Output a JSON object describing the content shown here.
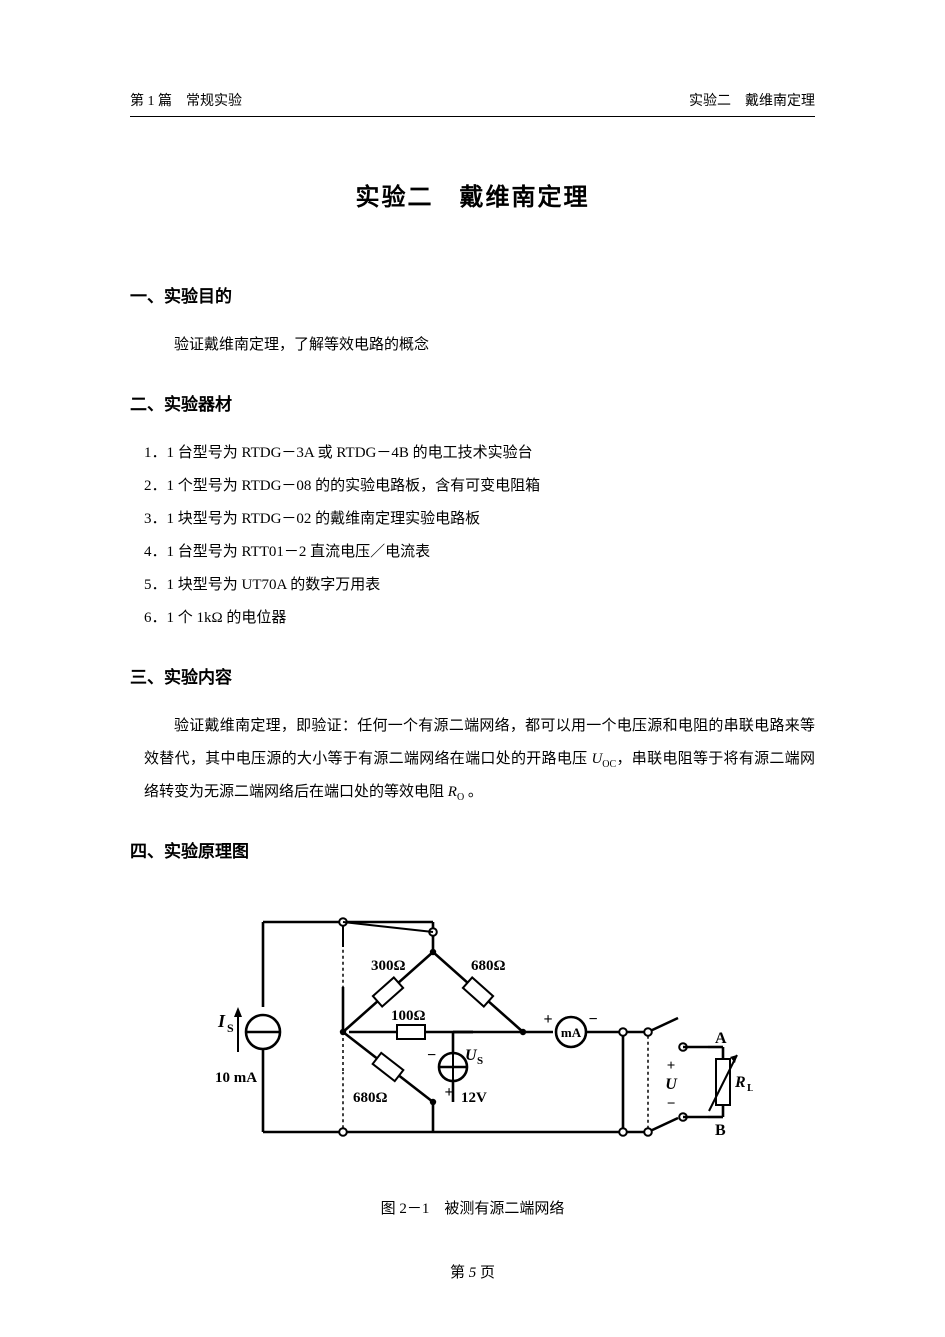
{
  "header": {
    "left": "第 1 篇　常规实验",
    "right": "实验二　戴维南定理"
  },
  "title": "实验二　戴维南定理",
  "sections": {
    "s1": {
      "heading": "一、实验目的",
      "text": "验证戴维南定理，了解等效电路的概念"
    },
    "s2": {
      "heading": "二、实验器材",
      "items": {
        "i1": "1．1 台型号为 RTDG－3A 或 RTDG－4B  的电工技术实验台",
        "i2": "2．1 个型号为 RTDG－08 的的实验电路板，含有可变电阻箱",
        "i3": "3．1 块型号为 RTDG－02 的戴维南定理实验电路板",
        "i4": "4．1 台型号为 RTT01－2  直流电压／电流表",
        "i5": "5．1 块型号为 UT70A  的数字万用表",
        "i6": "6．1 个 1kΩ 的电位器"
      }
    },
    "s3": {
      "heading": "三、实验内容",
      "para_pre": "验证戴维南定理，即验证：任何一个有源二端网络，都可以用一个电压源和电阻的串联电路来等效替代，其中电压源的大小等于有源二端网络在端口处的开路电压 ",
      "uoc_i": "U",
      "uoc_sub": "OC",
      "para_mid": "，串联电阻等于将有源二端网络转变为无源二端网络后在端口处的等效电阻 ",
      "ro_i": "R",
      "ro_sub": "O",
      "para_post": " 。"
    },
    "s4": {
      "heading": "四、实验原理图",
      "caption": "图 2－1　被测有源二端网络"
    }
  },
  "circuit": {
    "labels": {
      "Is_i": "I",
      "Is_sub": "S",
      "src_val": "10 mA",
      "r300": "300Ω",
      "r680a": "680Ω",
      "r100": "100Ω",
      "r680b": "680Ω",
      "Us_i": "U",
      "Us_sub": "S",
      "Us_val": "12V",
      "mA": "mA",
      "plus": "+",
      "minus": "−",
      "A": "A",
      "B": "B",
      "U_i": "U",
      "RL_i": "R",
      "RL_sub": "L"
    },
    "style": {
      "stroke": "#000000",
      "stroke_width": 2,
      "stroke_bold": 2.6,
      "node_r": 3.2,
      "open_r": 3.8,
      "font_size": 16,
      "font_size_sm": 12,
      "meter_r": 15,
      "src_r": 17
    }
  },
  "footer": {
    "pre": "第 ",
    "num": "5",
    "post": " 页"
  }
}
